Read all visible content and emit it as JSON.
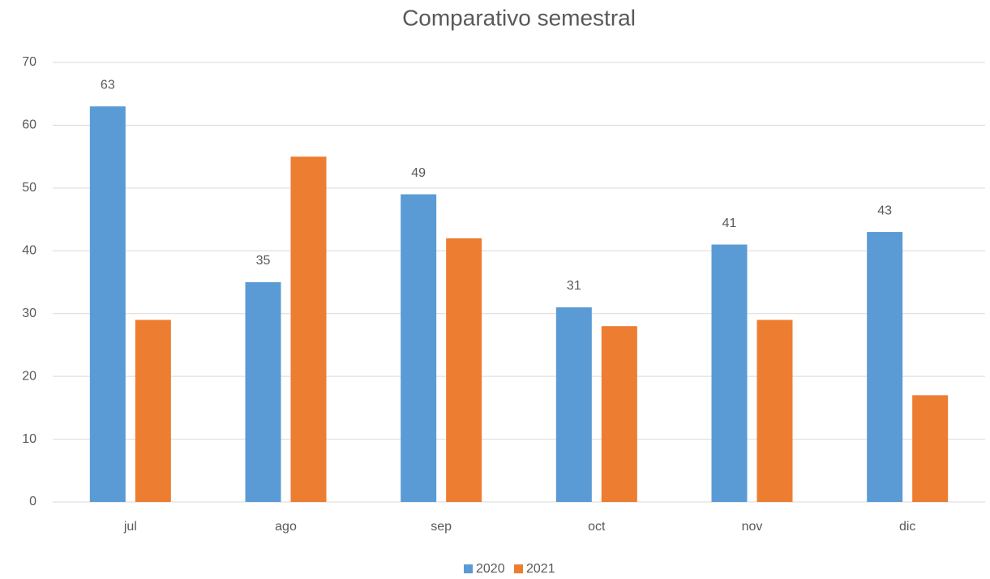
{
  "chart_data": {
    "type": "bar",
    "title": "Comparativo semestral",
    "categories": [
      "jul",
      "ago",
      "sep",
      "oct",
      "nov",
      "dic"
    ],
    "series": [
      {
        "name": "2020",
        "color": "#5b9bd5",
        "values": [
          63,
          35,
          49,
          31,
          41,
          43
        ],
        "data_labels": true
      },
      {
        "name": "2021",
        "color": "#ed7d31",
        "values": [
          29,
          55,
          42,
          28,
          29,
          17
        ],
        "data_labels": false
      }
    ],
    "ylim": [
      0,
      70
    ],
    "yticks": [
      0,
      10,
      20,
      30,
      40,
      50,
      60,
      70
    ],
    "grid": true,
    "legend": "bottom"
  }
}
